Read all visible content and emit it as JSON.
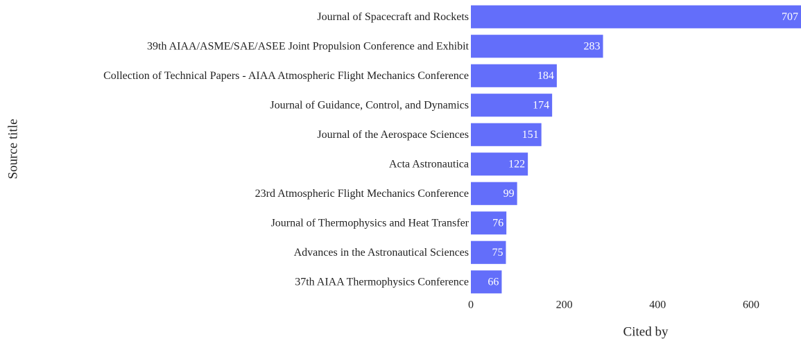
{
  "chart_data": {
    "type": "bar",
    "orientation": "horizontal",
    "categories": [
      "Journal of Spacecraft and Rockets",
      "39th AIAA/ASME/SAE/ASEE Joint Propulsion Conference and Exhibit",
      "Collection of Technical Papers - AIAA Atmospheric Flight Mechanics Conference",
      "Journal of Guidance, Control, and Dynamics",
      "Journal of the Aerospace Sciences",
      "Acta Astronautica",
      "23rd Atmospheric Flight Mechanics Conference",
      "Journal of Thermophysics and Heat Transfer",
      "Advances in the Astronautical Sciences",
      "37th AIAA Thermophysics Conference"
    ],
    "values": [
      707,
      283,
      184,
      174,
      151,
      122,
      99,
      76,
      75,
      66
    ],
    "color": "#636efa",
    "xlabel": "Cited by",
    "ylabel": "Source title",
    "xlim": [
      0,
      707
    ],
    "xticks": [
      0,
      200,
      400,
      600
    ],
    "grid": false
  }
}
